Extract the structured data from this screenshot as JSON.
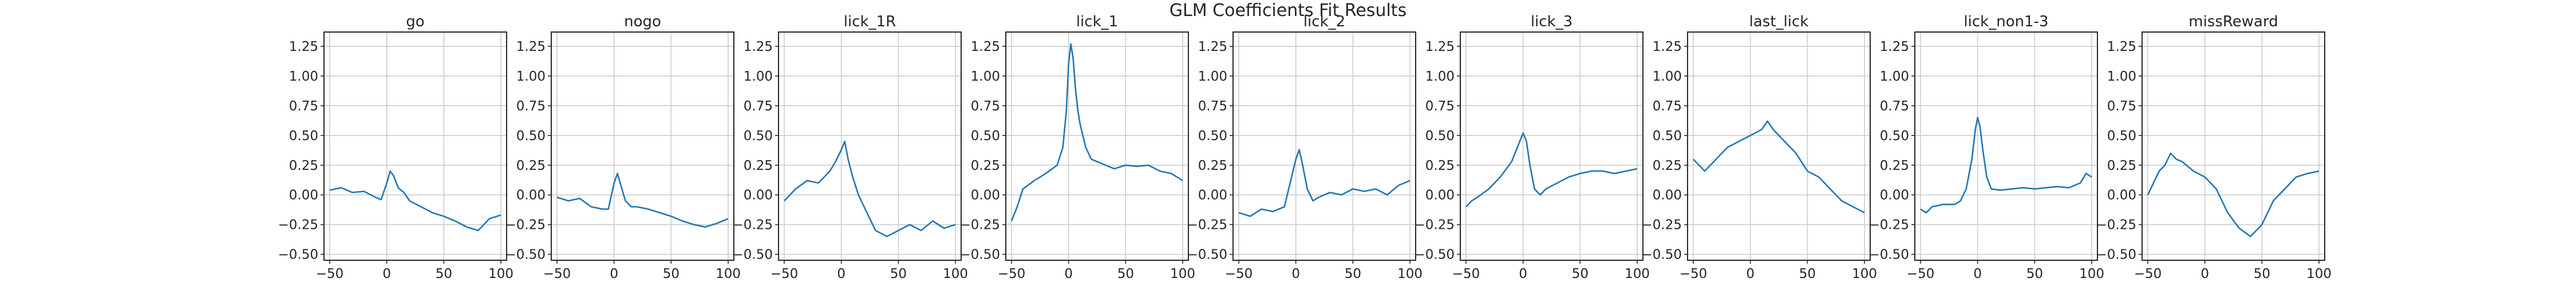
{
  "figure": {
    "suptitle": "GLM Coefficients Fit Results"
  },
  "chart_data": {
    "type": "line",
    "grid": true,
    "line_color": "#1f77b4",
    "xlim": [
      -55,
      105
    ],
    "ylim": [
      -0.55,
      1.37
    ],
    "xticks": [
      -50,
      0,
      50,
      100
    ],
    "xtick_labels": [
      "−50",
      "0",
      "50",
      "100"
    ],
    "yticks": [
      -0.5,
      -0.25,
      0,
      0.25,
      0.5,
      0.75,
      1.0,
      1.25
    ],
    "ytick_labels": [
      "−0.50",
      "−0.25",
      "0.00",
      "0.25",
      "0.50",
      "0.75",
      "1.00",
      "1.25"
    ],
    "panels": [
      {
        "title": "go",
        "x": [
          -50,
          -40,
          -30,
          -20,
          -10,
          -5,
          0,
          3,
          6,
          10,
          15,
          20,
          30,
          40,
          50,
          60,
          70,
          80,
          90,
          100
        ],
        "y": [
          0.04,
          0.06,
          0.02,
          0.03,
          -0.02,
          -0.04,
          0.1,
          0.2,
          0.16,
          0.06,
          0.02,
          -0.05,
          -0.1,
          -0.15,
          -0.18,
          -0.22,
          -0.27,
          -0.3,
          -0.2,
          -0.17
        ]
      },
      {
        "title": "nogo",
        "x": [
          -50,
          -40,
          -30,
          -20,
          -10,
          -5,
          0,
          3,
          6,
          10,
          15,
          20,
          30,
          40,
          50,
          60,
          70,
          80,
          90,
          100
        ],
        "y": [
          -0.02,
          -0.05,
          -0.03,
          -0.1,
          -0.12,
          -0.12,
          0.1,
          0.18,
          0.08,
          -0.05,
          -0.1,
          -0.1,
          -0.12,
          -0.15,
          -0.18,
          -0.22,
          -0.25,
          -0.27,
          -0.24,
          -0.2
        ]
      },
      {
        "title": "lick_1R",
        "x": [
          -50,
          -40,
          -30,
          -20,
          -10,
          -5,
          0,
          3,
          6,
          10,
          15,
          20,
          25,
          30,
          40,
          50,
          60,
          70,
          80,
          90,
          100
        ],
        "y": [
          -0.05,
          0.05,
          0.12,
          0.1,
          0.2,
          0.28,
          0.38,
          0.45,
          0.3,
          0.15,
          0.0,
          -0.1,
          -0.2,
          -0.3,
          -0.35,
          -0.3,
          -0.25,
          -0.3,
          -0.22,
          -0.28,
          -0.25
        ]
      },
      {
        "title": "lick_1",
        "x": [
          -50,
          -45,
          -40,
          -30,
          -20,
          -10,
          -5,
          -2,
          0,
          2,
          4,
          6,
          8,
          10,
          15,
          20,
          30,
          40,
          50,
          60,
          70,
          80,
          90,
          100
        ],
        "y": [
          -0.22,
          -0.1,
          0.05,
          0.12,
          0.18,
          0.25,
          0.4,
          0.7,
          1.1,
          1.27,
          1.15,
          0.9,
          0.72,
          0.6,
          0.4,
          0.3,
          0.26,
          0.22,
          0.25,
          0.24,
          0.25,
          0.2,
          0.18,
          0.12
        ]
      },
      {
        "title": "lick_2",
        "x": [
          -50,
          -40,
          -30,
          -20,
          -10,
          -5,
          0,
          3,
          6,
          10,
          15,
          20,
          30,
          40,
          50,
          60,
          70,
          80,
          90,
          100
        ],
        "y": [
          -0.15,
          -0.18,
          -0.12,
          -0.14,
          -0.1,
          0.1,
          0.3,
          0.38,
          0.25,
          0.05,
          -0.05,
          -0.02,
          0.02,
          0.0,
          0.05,
          0.03,
          0.05,
          0.0,
          0.08,
          0.12
        ]
      },
      {
        "title": "lick_3",
        "x": [
          -50,
          -45,
          -40,
          -30,
          -20,
          -10,
          -5,
          0,
          3,
          6,
          10,
          15,
          20,
          30,
          40,
          50,
          60,
          70,
          80,
          90,
          100
        ],
        "y": [
          -0.1,
          -0.05,
          -0.02,
          0.05,
          0.15,
          0.28,
          0.4,
          0.52,
          0.45,
          0.25,
          0.05,
          0.0,
          0.05,
          0.1,
          0.15,
          0.18,
          0.2,
          0.2,
          0.18,
          0.2,
          0.22
        ]
      },
      {
        "title": "last_lick",
        "x": [
          -50,
          -40,
          -30,
          -20,
          -10,
          0,
          10,
          15,
          20,
          30,
          40,
          50,
          60,
          70,
          80,
          90,
          100
        ],
        "y": [
          0.3,
          0.2,
          0.3,
          0.4,
          0.45,
          0.5,
          0.55,
          0.62,
          0.55,
          0.45,
          0.35,
          0.2,
          0.15,
          0.05,
          -0.05,
          -0.1,
          -0.15
        ]
      },
      {
        "title": "lick_non1-3",
        "x": [
          -50,
          -45,
          -40,
          -30,
          -20,
          -15,
          -10,
          -5,
          -2,
          0,
          2,
          5,
          8,
          12,
          20,
          30,
          40,
          50,
          60,
          70,
          80,
          90,
          95,
          100
        ],
        "y": [
          -0.12,
          -0.15,
          -0.1,
          -0.08,
          -0.08,
          -0.05,
          0.05,
          0.3,
          0.55,
          0.65,
          0.58,
          0.35,
          0.15,
          0.05,
          0.04,
          0.05,
          0.06,
          0.05,
          0.06,
          0.07,
          0.06,
          0.1,
          0.18,
          0.15
        ]
      },
      {
        "title": "missReward",
        "x": [
          -50,
          -45,
          -40,
          -35,
          -30,
          -25,
          -20,
          -10,
          0,
          10,
          20,
          30,
          40,
          50,
          60,
          70,
          80,
          90,
          100
        ],
        "y": [
          0.0,
          0.1,
          0.2,
          0.25,
          0.35,
          0.3,
          0.28,
          0.2,
          0.15,
          0.05,
          -0.15,
          -0.28,
          -0.35,
          -0.25,
          -0.05,
          0.05,
          0.15,
          0.18,
          0.2
        ]
      }
    ]
  }
}
